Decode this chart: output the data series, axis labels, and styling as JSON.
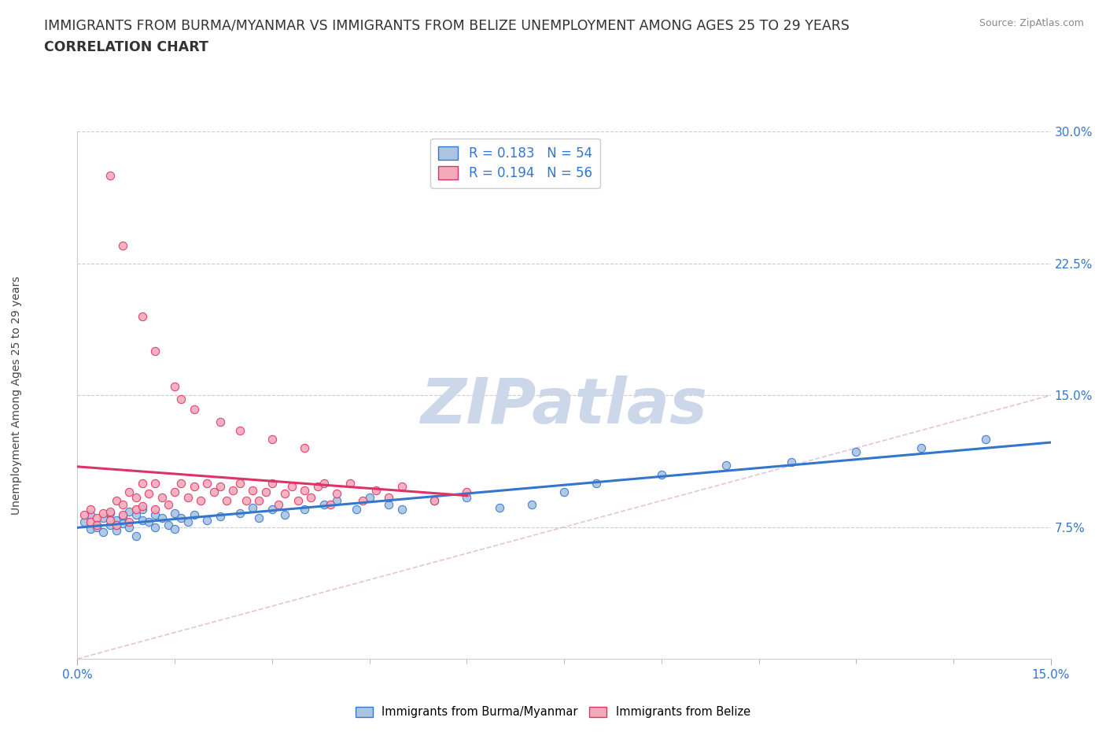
{
  "title_line1": "IMMIGRANTS FROM BURMA/MYANMAR VS IMMIGRANTS FROM BELIZE UNEMPLOYMENT AMONG AGES 25 TO 29 YEARS",
  "title_line2": "CORRELATION CHART",
  "source_text": "Source: ZipAtlas.com",
  "ylabel": "Unemployment Among Ages 25 to 29 years",
  "xlim": [
    0.0,
    0.15
  ],
  "ylim": [
    0.0,
    0.3
  ],
  "ytick_values": [
    0.075,
    0.15,
    0.225,
    0.3
  ],
  "ytick_labels": [
    "7.5%",
    "15.0%",
    "22.5%",
    "30.0%"
  ],
  "xtick_values": [
    0.0,
    0.15
  ],
  "xtick_labels": [
    "0.0%",
    "15.0%"
  ],
  "legend_labels": [
    "Immigrants from Burma/Myanmar",
    "Immigrants from Belize"
  ],
  "R_burma": "0.183",
  "N_burma": "54",
  "R_belize": "0.194",
  "N_belize": "56",
  "color_burma": "#aac4e2",
  "color_belize": "#f4aabb",
  "line_color_burma": "#3377cc",
  "line_color_belize": "#dd3366",
  "tick_label_color": "#3377cc",
  "title_color": "#333333",
  "title_fontsize": 12.5,
  "watermark_text": "ZIPatlas",
  "watermark_color": "#ccd8ea",
  "source_color": "#888888",
  "grid_color": "#cccccc",
  "diag_color": "#cccccc",
  "background_color": "#ffffff",
  "burma_x": [
    0.001,
    0.002,
    0.002,
    0.003,
    0.004,
    0.004,
    0.005,
    0.005,
    0.006,
    0.006,
    0.007,
    0.007,
    0.008,
    0.008,
    0.009,
    0.009,
    0.01,
    0.01,
    0.011,
    0.012,
    0.012,
    0.013,
    0.014,
    0.015,
    0.015,
    0.016,
    0.017,
    0.018,
    0.02,
    0.022,
    0.025,
    0.027,
    0.028,
    0.03,
    0.032,
    0.035,
    0.038,
    0.04,
    0.043,
    0.045,
    0.048,
    0.05,
    0.055,
    0.06,
    0.065,
    0.07,
    0.075,
    0.08,
    0.09,
    0.1,
    0.11,
    0.12,
    0.13,
    0.14
  ],
  "burma_y": [
    0.078,
    0.074,
    0.082,
    0.075,
    0.08,
    0.072,
    0.083,
    0.076,
    0.079,
    0.073,
    0.081,
    0.077,
    0.084,
    0.075,
    0.082,
    0.07,
    0.079,
    0.085,
    0.078,
    0.082,
    0.075,
    0.08,
    0.076,
    0.083,
    0.074,
    0.08,
    0.078,
    0.082,
    0.079,
    0.081,
    0.083,
    0.086,
    0.08,
    0.085,
    0.082,
    0.085,
    0.088,
    0.09,
    0.085,
    0.092,
    0.088,
    0.085,
    0.09,
    0.092,
    0.086,
    0.088,
    0.095,
    0.1,
    0.105,
    0.11,
    0.112,
    0.118,
    0.12,
    0.125
  ],
  "belize_x": [
    0.001,
    0.002,
    0.002,
    0.003,
    0.003,
    0.004,
    0.005,
    0.005,
    0.006,
    0.006,
    0.007,
    0.007,
    0.008,
    0.008,
    0.009,
    0.009,
    0.01,
    0.01,
    0.011,
    0.012,
    0.012,
    0.013,
    0.014,
    0.015,
    0.016,
    0.017,
    0.018,
    0.019,
    0.02,
    0.021,
    0.022,
    0.023,
    0.024,
    0.025,
    0.026,
    0.027,
    0.028,
    0.029,
    0.03,
    0.031,
    0.032,
    0.033,
    0.034,
    0.035,
    0.036,
    0.037,
    0.038,
    0.039,
    0.04,
    0.042,
    0.044,
    0.046,
    0.048,
    0.05,
    0.055,
    0.06
  ],
  "belize_y": [
    0.082,
    0.078,
    0.085,
    0.08,
    0.076,
    0.083,
    0.084,
    0.079,
    0.09,
    0.076,
    0.088,
    0.082,
    0.095,
    0.078,
    0.092,
    0.085,
    0.1,
    0.087,
    0.094,
    0.1,
    0.085,
    0.092,
    0.088,
    0.095,
    0.1,
    0.092,
    0.098,
    0.09,
    0.1,
    0.095,
    0.098,
    0.09,
    0.096,
    0.1,
    0.09,
    0.096,
    0.09,
    0.095,
    0.1,
    0.088,
    0.094,
    0.098,
    0.09,
    0.096,
    0.092,
    0.098,
    0.1,
    0.088,
    0.094,
    0.1,
    0.09,
    0.096,
    0.092,
    0.098,
    0.09,
    0.095
  ],
  "belize_outliers_x": [
    0.005,
    0.007,
    0.01,
    0.012,
    0.015,
    0.016,
    0.018,
    0.022,
    0.025,
    0.03,
    0.035
  ],
  "belize_outliers_y": [
    0.275,
    0.235,
    0.195,
    0.175,
    0.155,
    0.148,
    0.142,
    0.135,
    0.13,
    0.125,
    0.12
  ]
}
